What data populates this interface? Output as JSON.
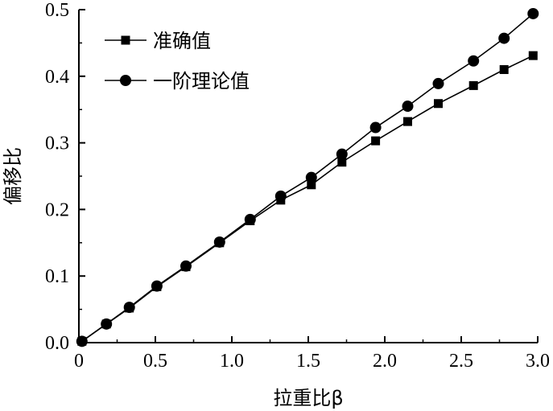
{
  "chart_data": {
    "type": "line",
    "xlabel": "拉重比β",
    "ylabel": "偏移比",
    "xlim": [
      0,
      3.0
    ],
    "ylim": [
      0,
      0.5
    ],
    "xticks": [
      "0",
      "0.5",
      "1.0",
      "1.5",
      "2.0",
      "2.5",
      "3.0"
    ],
    "yticks": [
      "0.0",
      "0.1",
      "0.2",
      "0.3",
      "0.4",
      "0.5"
    ],
    "legend_position": "top-left",
    "grid": false,
    "series": [
      {
        "name": "准确值",
        "marker": "square",
        "x": [
          0.02,
          0.18,
          0.33,
          0.51,
          0.7,
          0.92,
          1.12,
          1.32,
          1.52,
          1.72,
          1.94,
          2.15,
          2.35,
          2.58,
          2.78,
          2.97
        ],
        "y": [
          0.002,
          0.028,
          0.052,
          0.084,
          0.114,
          0.15,
          0.183,
          0.214,
          0.237,
          0.271,
          0.303,
          0.332,
          0.359,
          0.386,
          0.41,
          0.431
        ]
      },
      {
        "name": "一阶理论值",
        "marker": "circle",
        "x": [
          0.02,
          0.18,
          0.33,
          0.51,
          0.7,
          0.92,
          1.12,
          1.32,
          1.52,
          1.72,
          1.94,
          2.15,
          2.35,
          2.58,
          2.78,
          2.97
        ],
        "y": [
          0.002,
          0.028,
          0.053,
          0.085,
          0.115,
          0.151,
          0.185,
          0.22,
          0.248,
          0.283,
          0.323,
          0.355,
          0.389,
          0.423,
          0.457,
          0.494
        ]
      }
    ]
  }
}
